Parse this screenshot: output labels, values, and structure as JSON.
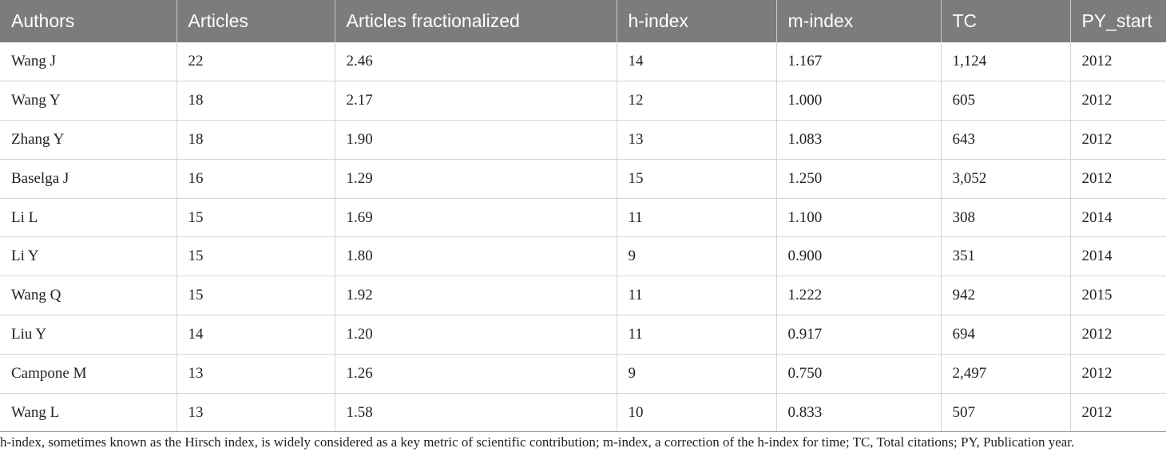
{
  "table": {
    "headers": [
      "Authors",
      "Articles",
      "Articles fractionalized",
      "h-index",
      "m-index",
      "TC",
      "PY_start"
    ],
    "rows": [
      [
        "Wang J",
        "22",
        "2.46",
        "14",
        "1.167",
        "1,124",
        "2012"
      ],
      [
        "Wang Y",
        "18",
        "2.17",
        "12",
        "1.000",
        "605",
        "2012"
      ],
      [
        "Zhang Y",
        "18",
        "1.90",
        "13",
        "1.083",
        "643",
        "2012"
      ],
      [
        "Baselga J",
        "16",
        "1.29",
        "15",
        "1.250",
        "3,052",
        "2012"
      ],
      [
        "Li L",
        "15",
        "1.69",
        "11",
        "1.100",
        "308",
        "2014"
      ],
      [
        "Li Y",
        "15",
        "1.80",
        "9",
        "0.900",
        "351",
        "2014"
      ],
      [
        "Wang Q",
        "15",
        "1.92",
        "11",
        "1.222",
        "942",
        "2015"
      ],
      [
        "Liu Y",
        "14",
        "1.20",
        "11",
        "0.917",
        "694",
        "2012"
      ],
      [
        "Campone M",
        "13",
        "1.26",
        "9",
        "0.750",
        "2,497",
        "2012"
      ],
      [
        "Wang L",
        "13",
        "1.58",
        "10",
        "0.833",
        "507",
        "2012"
      ]
    ]
  },
  "footnote": "h-index, sometimes known as the Hirsch index, is widely considered as a key metric of scientific contribution; m-index, a correction of the h-index for time; TC, Total citations; PY, Publication year.",
  "colors": {
    "header_background": "#7b7c7e",
    "header_text": "#ffffff",
    "grid_line": "#d4d4d4"
  }
}
